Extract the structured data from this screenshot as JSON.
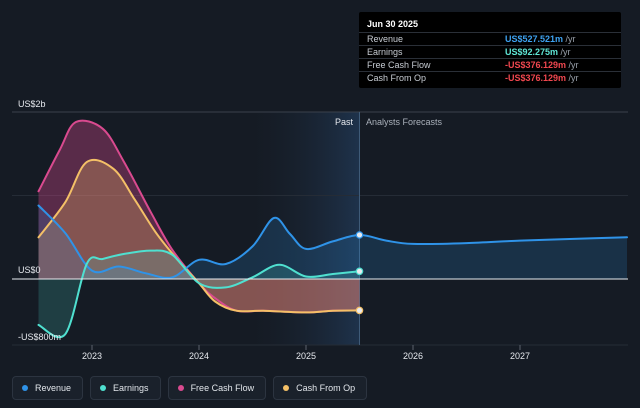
{
  "chart_data": {
    "type": "line",
    "y_axis": {
      "top_label": "US$2b",
      "zero_label": "US$0",
      "bottom_label": "-US$800m",
      "ylim": [
        -800,
        2000
      ]
    },
    "x_axis": {
      "ticks": [
        "2023",
        "2024",
        "2025",
        "2026",
        "2027"
      ],
      "xlim": [
        2022.3,
        2028.0
      ]
    },
    "regions": {
      "past_label": "Past",
      "forecast_label": "Analysts Forecasts",
      "divider_x": 2025.5
    },
    "series": [
      {
        "name": "Revenue",
        "color": "#2f93e8",
        "points": [
          [
            2022.5,
            880
          ],
          [
            2022.75,
            550
          ],
          [
            2023.0,
            100
          ],
          [
            2023.25,
            150
          ],
          [
            2023.5,
            70
          ],
          [
            2023.75,
            20
          ],
          [
            2024.0,
            230
          ],
          [
            2024.25,
            180
          ],
          [
            2024.5,
            390
          ],
          [
            2024.7,
            730
          ],
          [
            2024.85,
            540
          ],
          [
            2025.0,
            360
          ],
          [
            2025.25,
            450
          ],
          [
            2025.5,
            527.521
          ],
          [
            2025.75,
            460
          ],
          [
            2026.0,
            420
          ],
          [
            2026.5,
            430
          ],
          [
            2027.0,
            460
          ],
          [
            2027.5,
            480
          ],
          [
            2028.0,
            500
          ]
        ]
      },
      {
        "name": "Earnings",
        "color": "#4fe0d0",
        "points": [
          [
            2022.5,
            -550
          ],
          [
            2022.75,
            -660
          ],
          [
            2022.95,
            180
          ],
          [
            2023.1,
            240
          ],
          [
            2023.3,
            300
          ],
          [
            2023.55,
            340
          ],
          [
            2023.75,
            290
          ],
          [
            2024.0,
            -50
          ],
          [
            2024.25,
            -100
          ],
          [
            2024.5,
            20
          ],
          [
            2024.75,
            170
          ],
          [
            2025.0,
            30
          ],
          [
            2025.25,
            60
          ],
          [
            2025.5,
            92.275
          ]
        ]
      },
      {
        "name": "Free Cash Flow",
        "color": "#d94a8f",
        "points": [
          [
            2022.5,
            1050
          ],
          [
            2022.7,
            1550
          ],
          [
            2022.85,
            1880
          ],
          [
            2023.1,
            1800
          ],
          [
            2023.3,
            1400
          ],
          [
            2023.55,
            800
          ],
          [
            2023.75,
            350
          ],
          [
            2024.0,
            -50
          ],
          [
            2024.15,
            -230
          ],
          [
            2024.35,
            -380
          ],
          [
            2024.6,
            -380
          ],
          [
            2025.0,
            -400
          ],
          [
            2025.25,
            -380
          ],
          [
            2025.5,
            -376.129
          ]
        ]
      },
      {
        "name": "Cash From Op",
        "color": "#f4c067",
        "points": [
          [
            2022.5,
            500
          ],
          [
            2022.75,
            920
          ],
          [
            2022.95,
            1400
          ],
          [
            2023.2,
            1320
          ],
          [
            2023.4,
            950
          ],
          [
            2023.6,
            550
          ],
          [
            2023.8,
            230
          ],
          [
            2024.0,
            -50
          ],
          [
            2024.15,
            -270
          ],
          [
            2024.35,
            -380
          ],
          [
            2024.6,
            -380
          ],
          [
            2025.0,
            -400
          ],
          [
            2025.25,
            -380
          ],
          [
            2025.5,
            -376.129
          ]
        ]
      }
    ]
  },
  "tooltip": {
    "date": "Jun 30 2025",
    "rows": [
      {
        "label": "Revenue",
        "value": "US$527.521m",
        "unit": "/yr",
        "color": "#3ea2f0"
      },
      {
        "label": "Earnings",
        "value": "US$92.275m",
        "unit": "/yr",
        "color": "#5fe6d6"
      },
      {
        "label": "Free Cash Flow",
        "value": "-US$376.129m",
        "unit": "/yr",
        "color": "#f0474f"
      },
      {
        "label": "Cash From Op",
        "value": "-US$376.129m",
        "unit": "/yr",
        "color": "#f0474f"
      }
    ]
  },
  "legend": [
    {
      "label": "Revenue",
      "color": "#2f93e8"
    },
    {
      "label": "Earnings",
      "color": "#4fe0d0"
    },
    {
      "label": "Free Cash Flow",
      "color": "#d94a8f"
    },
    {
      "label": "Cash From Op",
      "color": "#f4c067"
    }
  ]
}
